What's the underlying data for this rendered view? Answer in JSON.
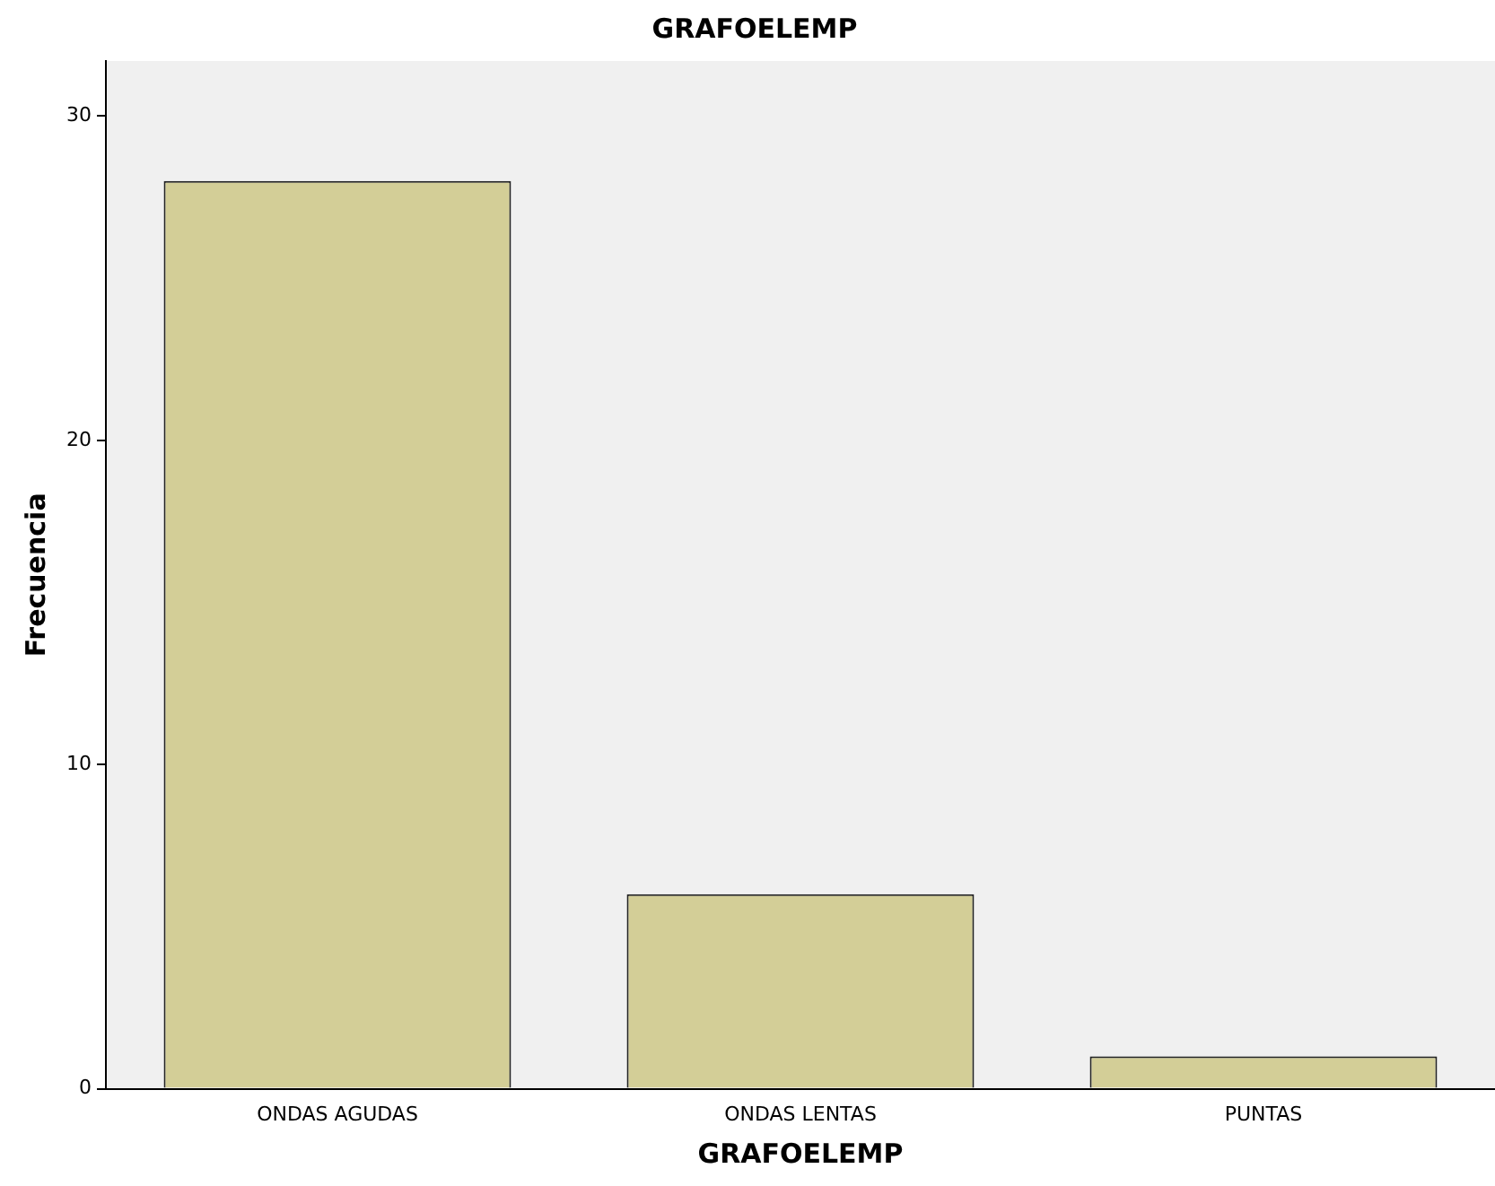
{
  "chart_data": {
    "type": "bar",
    "title": "GRAFOELEMP",
    "xlabel": "GRAFOELEMP",
    "ylabel": "Frecuencia",
    "categories": [
      "ONDAS AGUDAS",
      "ONDAS LENTAS",
      "PUNTAS"
    ],
    "values": [
      28,
      6,
      1
    ],
    "color": "#d3ce97",
    "ylim": [
      0,
      31.7
    ],
    "yticks": [
      0,
      10,
      20,
      30
    ],
    "grid": false,
    "legend": false
  }
}
